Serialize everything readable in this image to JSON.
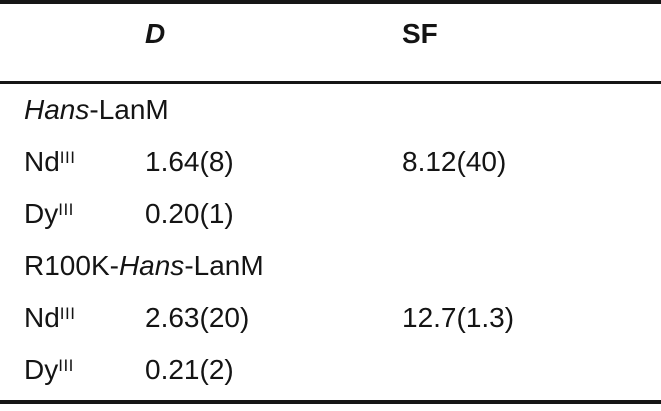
{
  "table": {
    "columns": {
      "ion": "",
      "d": "D",
      "sf": "SF"
    },
    "rows": [
      {
        "kind": "group",
        "prefix": "",
        "italic_part": "Hans",
        "suffix": "-LanM"
      },
      {
        "kind": "data",
        "ion": "Nd",
        "oxidation": "III",
        "d": "1.64(8)",
        "sf": "8.12(40)"
      },
      {
        "kind": "data",
        "ion": "Dy",
        "oxidation": "III",
        "d": "0.20(1)",
        "sf": ""
      },
      {
        "kind": "group",
        "prefix": "R100K-",
        "italic_part": "Hans",
        "suffix": "-LanM"
      },
      {
        "kind": "data",
        "ion": "Nd",
        "oxidation": "III",
        "d": "2.63(20)",
        "sf": "12.7(1.3)"
      },
      {
        "kind": "data",
        "ion": "Dy",
        "oxidation": "III",
        "d": "0.21(2)",
        "sf": ""
      }
    ]
  }
}
